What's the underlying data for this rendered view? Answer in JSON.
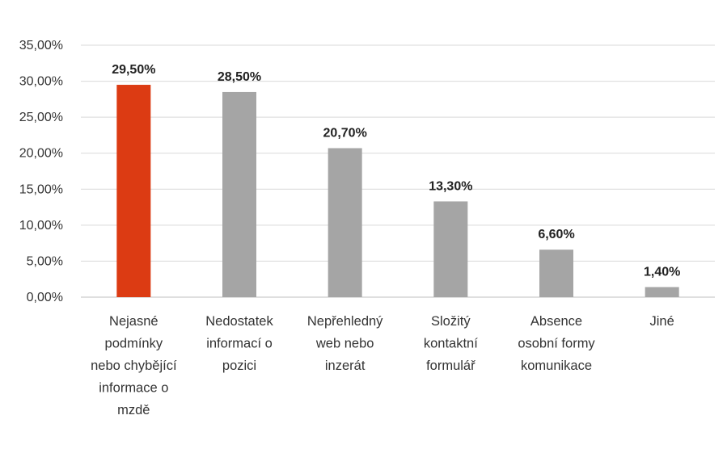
{
  "chart_data": {
    "type": "bar",
    "title": "",
    "xlabel": "",
    "ylabel": "",
    "ylim": [
      0,
      35
    ],
    "ytick_step": 5,
    "ytick_labels": [
      "0,00%",
      "5,00%",
      "10,00%",
      "15,00%",
      "20,00%",
      "25,00%",
      "30,00%",
      "35,00%"
    ],
    "categories": [
      [
        "Nejasné",
        "podmínky",
        "nebo chybějící",
        "informace o",
        "mzdě"
      ],
      [
        "Nedostatek",
        "informací o",
        "pozici"
      ],
      [
        "Nepřehledný",
        "web nebo",
        "inzerát"
      ],
      [
        "Složitý",
        "kontaktní",
        "formulář"
      ],
      [
        "Absence",
        "osobní formy",
        "komunikace"
      ],
      [
        "Jiné"
      ]
    ],
    "values": [
      29.5,
      28.5,
      20.7,
      13.3,
      6.6,
      1.4
    ],
    "data_labels": [
      "29,50%",
      "28,50%",
      "20,70%",
      "13,30%",
      "6,60%",
      "1,40%"
    ],
    "highlight_index": 0,
    "grid": true,
    "legend": "none"
  },
  "colors": {
    "highlight": "#dc3b13",
    "bar": "#a5a5a5",
    "grid": "#d9d9d9",
    "axis": "#bfbfbf"
  }
}
